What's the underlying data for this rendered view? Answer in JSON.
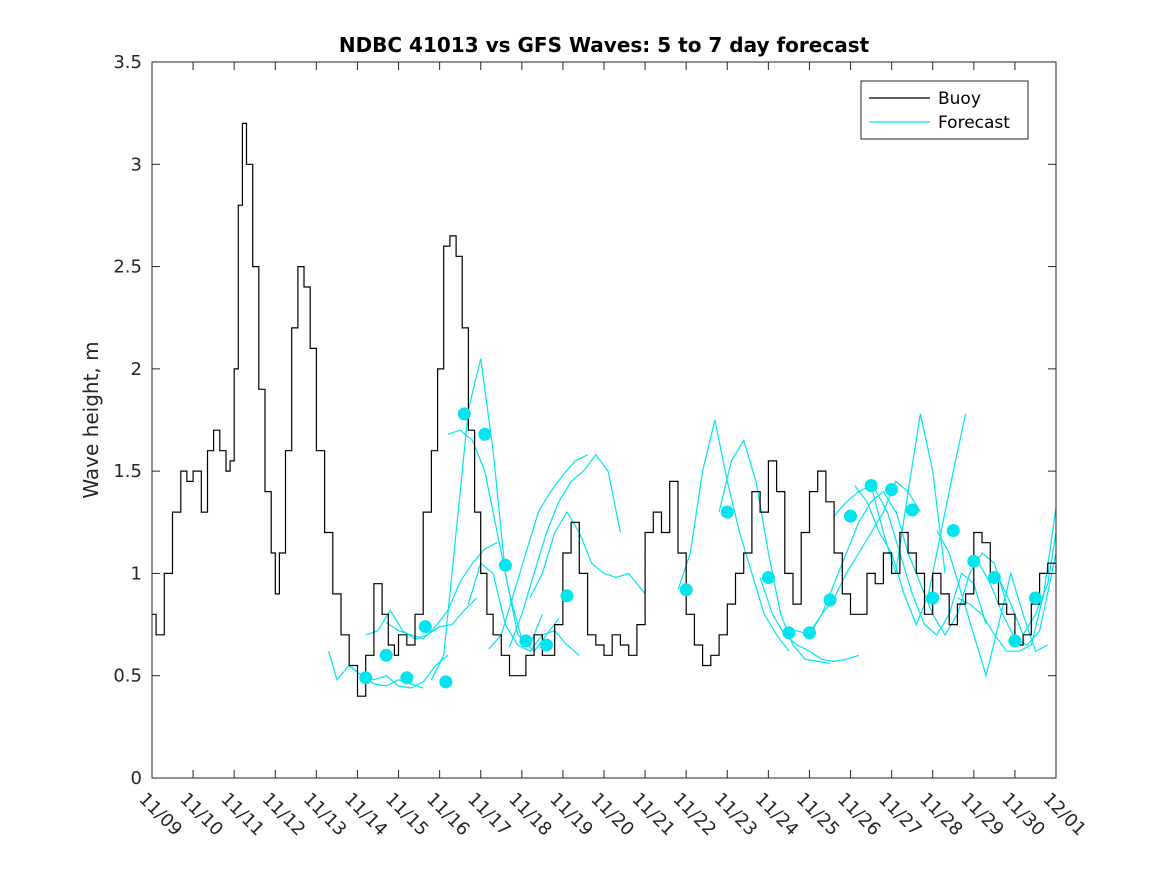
{
  "chart_data": {
    "type": "line",
    "title": "NDBC 41013 vs GFS Waves: 5 to 7 day forecast",
    "xlabel": "",
    "ylabel": "Wave height, m",
    "xlim": [
      0,
      22
    ],
    "ylim": [
      0,
      3.5
    ],
    "yticks": [
      0,
      0.5,
      1,
      1.5,
      2,
      2.5,
      3,
      3.5
    ],
    "ytick_labels": [
      "0",
      "0.5",
      "1",
      "1.5",
      "2",
      "2.5",
      "3",
      "3.5"
    ],
    "xticks": [
      0,
      1,
      2,
      3,
      4,
      5,
      6,
      7,
      8,
      9,
      10,
      11,
      12,
      13,
      14,
      15,
      16,
      17,
      18,
      19,
      20,
      21,
      22
    ],
    "xtick_labels": [
      "11/09",
      "11/10",
      "11/11",
      "11/12",
      "11/13",
      "11/14",
      "11/15",
      "11/16",
      "11/17",
      "11/18",
      "11/19",
      "11/20",
      "11/21",
      "11/22",
      "11/23",
      "11/24",
      "11/25",
      "11/26",
      "11/27",
      "11/28",
      "11/29",
      "11/30",
      "12/01"
    ],
    "legend": {
      "position": "top-right",
      "entries": [
        "Buoy",
        "Forecast"
      ]
    },
    "colors": {
      "buoy": "#000000",
      "forecast": "#00e5ee"
    },
    "series": [
      {
        "name": "Buoy",
        "x": [
          0,
          0.1,
          0.3,
          0.5,
          0.7,
          0.85,
          1.0,
          1.2,
          1.35,
          1.5,
          1.65,
          1.8,
          1.9,
          2.0,
          2.1,
          2.2,
          2.3,
          2.45,
          2.6,
          2.75,
          2.9,
          3.0,
          3.1,
          3.25,
          3.4,
          3.55,
          3.7,
          3.85,
          4.0,
          4.2,
          4.4,
          4.6,
          4.8,
          5.0,
          5.2,
          5.4,
          5.6,
          5.75,
          5.9,
          6.0,
          6.2,
          6.4,
          6.6,
          6.8,
          6.95,
          7.1,
          7.25,
          7.4,
          7.55,
          7.7,
          7.85,
          8.0,
          8.15,
          8.3,
          8.5,
          8.7,
          8.9,
          9.1,
          9.3,
          9.5,
          9.8,
          10.0,
          10.2,
          10.4,
          10.6,
          10.8,
          11.0,
          11.2,
          11.4,
          11.6,
          11.8,
          12.0,
          12.2,
          12.4,
          12.6,
          12.8,
          13.0,
          13.2,
          13.4,
          13.6,
          13.8,
          14.0,
          14.2,
          14.4,
          14.6,
          14.8,
          15.0,
          15.2,
          15.4,
          15.6,
          15.8,
          16.0,
          16.2,
          16.4,
          16.6,
          16.8,
          17.0,
          17.2,
          17.4,
          17.6,
          17.8,
          18.0,
          18.2,
          18.4,
          18.6,
          18.8,
          19.0,
          19.2,
          19.4,
          19.6,
          19.8,
          20.0,
          20.2,
          20.4,
          20.6,
          20.8,
          21.0,
          21.2,
          21.4,
          21.6,
          21.8,
          22.0
        ],
        "y": [
          0.8,
          0.7,
          1.0,
          1.3,
          1.5,
          1.45,
          1.5,
          1.3,
          1.6,
          1.7,
          1.6,
          1.5,
          1.55,
          2.0,
          2.8,
          3.2,
          3.0,
          2.5,
          1.9,
          1.4,
          1.1,
          0.9,
          1.1,
          1.6,
          2.2,
          2.5,
          2.4,
          2.1,
          1.6,
          1.2,
          0.9,
          0.7,
          0.55,
          0.4,
          0.6,
          0.95,
          0.8,
          0.65,
          0.6,
          0.7,
          0.65,
          0.8,
          1.3,
          1.6,
          2.0,
          2.6,
          2.65,
          2.55,
          2.2,
          1.7,
          1.3,
          1.0,
          0.8,
          0.7,
          0.6,
          0.5,
          0.5,
          0.6,
          0.7,
          0.6,
          0.75,
          1.1,
          1.25,
          1.0,
          0.7,
          0.65,
          0.6,
          0.7,
          0.65,
          0.6,
          0.75,
          1.2,
          1.3,
          1.2,
          1.45,
          1.1,
          0.8,
          0.65,
          0.55,
          0.6,
          0.7,
          0.85,
          1.0,
          1.1,
          1.4,
          1.3,
          1.55,
          1.4,
          1.0,
          0.85,
          1.2,
          1.4,
          1.5,
          1.35,
          1.1,
          0.9,
          0.8,
          0.8,
          1.0,
          0.95,
          1.1,
          1.0,
          1.2,
          1.1,
          1.0,
          0.8,
          1.0,
          0.9,
          0.75,
          0.85,
          0.9,
          1.2,
          1.15,
          1.0,
          0.85,
          0.8,
          0.65,
          0.7,
          0.85,
          1.0,
          1.05,
          1.0
        ]
      },
      {
        "name": "Forecast",
        "segments": [
          {
            "x": [
              4.3,
              4.5,
              4.8,
              5.1,
              5.4,
              5.7,
              6.0,
              6.3,
              6.6
            ],
            "y": [
              0.62,
              0.48,
              0.55,
              0.5,
              0.46,
              0.45,
              0.48,
              0.46,
              0.44
            ]
          },
          {
            "x": [
              4.8,
              5.1,
              5.4,
              5.7,
              6.0,
              6.3,
              6.6,
              6.9,
              7.2
            ],
            "y": [
              0.55,
              0.5,
              0.48,
              0.5,
              0.45,
              0.44,
              0.47,
              0.55,
              0.6
            ]
          },
          {
            "x": [
              5.2,
              5.5,
              5.8,
              6.1,
              6.4,
              6.7,
              7.0,
              7.3,
              7.6,
              7.9
            ],
            "y": [
              0.7,
              0.72,
              0.82,
              0.72,
              0.68,
              0.7,
              0.74,
              0.75,
              0.82,
              0.88
            ]
          },
          {
            "x": [
              5.7,
              6.0,
              6.3,
              6.6,
              6.9,
              7.2,
              7.5,
              7.8,
              8.1,
              8.4
            ],
            "y": [
              0.76,
              0.72,
              0.7,
              0.68,
              0.74,
              0.82,
              0.96,
              1.05,
              1.12,
              1.15
            ]
          },
          {
            "x": [
              6.8,
              7.1,
              7.4,
              7.7,
              8.0,
              8.3,
              8.6,
              8.9,
              9.2,
              9.5
            ],
            "y": [
              0.48,
              0.6,
              1.2,
              1.8,
              2.05,
              1.6,
              1.0,
              0.7,
              0.65,
              0.8
            ]
          },
          {
            "x": [
              7.2,
              7.5,
              7.8,
              8.1,
              8.4,
              8.7,
              9.0,
              9.3,
              9.6,
              9.9
            ],
            "y": [
              1.68,
              1.7,
              1.65,
              1.5,
              1.2,
              0.9,
              0.68,
              0.62,
              0.7,
              0.78
            ]
          },
          {
            "x": [
              7.7,
              8.0,
              8.3,
              8.6,
              8.9,
              9.2,
              9.5,
              9.8,
              10.1,
              10.4
            ],
            "y": [
              0.85,
              1.05,
              1.0,
              0.75,
              0.65,
              0.62,
              0.7,
              0.72,
              0.65,
              0.6
            ]
          },
          {
            "x": [
              8.2,
              8.5,
              8.8,
              9.1,
              9.4,
              9.7,
              10.0,
              10.3,
              10.6
            ],
            "y": [
              0.63,
              0.7,
              0.9,
              1.1,
              1.3,
              1.4,
              1.48,
              1.55,
              1.58
            ]
          },
          {
            "x": [
              8.7,
              9.0,
              9.3,
              9.6,
              9.9,
              10.2,
              10.5,
              10.8,
              11.1,
              11.4
            ],
            "y": [
              0.64,
              0.8,
              1.0,
              1.2,
              1.35,
              1.45,
              1.5,
              1.58,
              1.5,
              1.2
            ]
          },
          {
            "x": [
              9.2,
              9.5,
              9.8,
              10.1,
              10.4,
              10.7,
              11.0,
              11.3,
              11.6,
              12.0
            ],
            "y": [
              0.88,
              1.0,
              1.2,
              1.3,
              1.2,
              1.05,
              1.0,
              0.98,
              1.0,
              0.9
            ]
          },
          {
            "x": [
              12.8,
              13.1,
              13.4,
              13.7,
              14.0,
              14.3,
              14.6,
              14.9,
              15.2,
              15.5
            ],
            "y": [
              0.92,
              1.1,
              1.5,
              1.75,
              1.45,
              1.2,
              1.0,
              0.8,
              0.7,
              0.62
            ]
          },
          {
            "x": [
              13.8,
              14.1,
              14.4,
              14.7,
              15.0,
              15.3,
              15.6,
              15.9,
              16.2,
              16.5
            ],
            "y": [
              1.3,
              1.55,
              1.65,
              1.45,
              1.1,
              0.8,
              0.65,
              0.58,
              0.57,
              0.56
            ]
          },
          {
            "x": [
              14.8,
              15.1,
              15.4,
              15.7,
              16.0,
              16.3,
              16.6,
              16.9,
              17.2
            ],
            "y": [
              0.98,
              0.8,
              0.7,
              0.65,
              0.62,
              0.58,
              0.57,
              0.58,
              0.6
            ]
          },
          {
            "x": [
              15.4,
              15.7,
              16.0,
              16.3,
              16.6,
              16.9,
              17.2,
              17.5,
              17.8,
              18.1
            ],
            "y": [
              0.71,
              0.72,
              0.7,
              0.8,
              0.95,
              1.1,
              1.25,
              1.35,
              1.4,
              1.3
            ]
          },
          {
            "x": [
              16.0,
              16.3,
              16.6,
              16.9,
              17.2,
              17.5,
              17.8,
              18.1,
              18.4,
              18.7
            ],
            "y": [
              0.71,
              0.8,
              0.88,
              1.0,
              1.1,
              1.2,
              1.3,
              1.45,
              1.4,
              1.3
            ]
          },
          {
            "x": [
              16.6,
              16.9,
              17.2,
              17.5,
              17.8,
              18.1,
              18.4,
              18.7,
              19.0,
              19.3
            ],
            "y": [
              1.28,
              1.35,
              1.4,
              1.43,
              1.2,
              1.0,
              1.4,
              1.78,
              1.5,
              1.0
            ]
          },
          {
            "x": [
              17.1,
              17.4,
              17.7,
              18.0,
              18.3,
              18.6,
              18.9,
              19.2,
              19.5,
              19.8
            ],
            "y": [
              1.43,
              1.35,
              1.2,
              1.1,
              0.9,
              0.75,
              0.9,
              1.2,
              1.5,
              1.78
            ]
          },
          {
            "x": [
              17.6,
              17.9,
              18.2,
              18.5,
              18.8,
              19.1,
              19.4,
              19.7,
              20.0,
              20.3
            ],
            "y": [
              1.41,
              1.3,
              1.1,
              0.9,
              0.75,
              0.7,
              0.8,
              1.0,
              0.95,
              0.75
            ]
          },
          {
            "x": [
              18.1,
              18.4,
              18.7,
              19.0,
              19.3,
              19.6,
              19.9,
              20.2,
              20.5,
              20.8
            ],
            "y": [
              1.31,
              1.1,
              0.95,
              0.8,
              0.7,
              0.8,
              1.0,
              1.1,
              1.05,
              0.85
            ]
          },
          {
            "x": [
              19.1,
              19.4,
              19.7,
              20.0,
              20.3,
              20.6,
              20.9,
              21.2,
              21.5,
              21.8
            ],
            "y": [
              1.21,
              1.1,
              0.9,
              0.7,
              0.5,
              0.75,
              1.0,
              0.8,
              0.62,
              0.65
            ]
          },
          {
            "x": [
              19.6,
              19.9,
              20.2,
              20.5,
              20.8,
              21.1,
              21.4,
              21.7,
              22.0
            ],
            "y": [
              0.88,
              0.85,
              0.8,
              0.7,
              0.62,
              0.62,
              0.65,
              0.9,
              1.32
            ]
          },
          {
            "x": [
              20.1,
              20.4,
              20.7,
              21.0,
              21.3,
              21.6,
              21.9,
              22.0
            ],
            "y": [
              1.06,
              0.95,
              0.8,
              0.68,
              0.65,
              0.72,
              1.0,
              1.1
            ]
          },
          {
            "x": [
              20.6,
              20.9,
              21.2,
              21.5,
              21.8,
              22.0
            ],
            "y": [
              0.98,
              0.85,
              0.7,
              0.8,
              0.95,
              1.2
            ]
          }
        ]
      }
    ],
    "markers": {
      "name": "Forecast start points",
      "x": [
        5.2,
        5.7,
        6.2,
        6.65,
        7.15,
        7.6,
        8.1,
        8.6,
        9.1,
        9.6,
        10.1,
        13.0,
        14.0,
        15.0,
        15.5,
        16.0,
        16.5,
        17.0,
        17.5,
        18.0,
        18.5,
        19.0,
        19.5,
        20.0,
        20.5,
        21.0,
        21.5
      ],
      "y": [
        0.49,
        0.6,
        0.49,
        0.74,
        0.47,
        1.78,
        1.68,
        1.04,
        0.67,
        0.65,
        0.89,
        0.92,
        1.3,
        0.98,
        0.71,
        0.71,
        0.87,
        1.28,
        1.43,
        1.41,
        1.31,
        0.88,
        1.21,
        1.06,
        0.98,
        0.67,
        0.88
      ]
    }
  }
}
